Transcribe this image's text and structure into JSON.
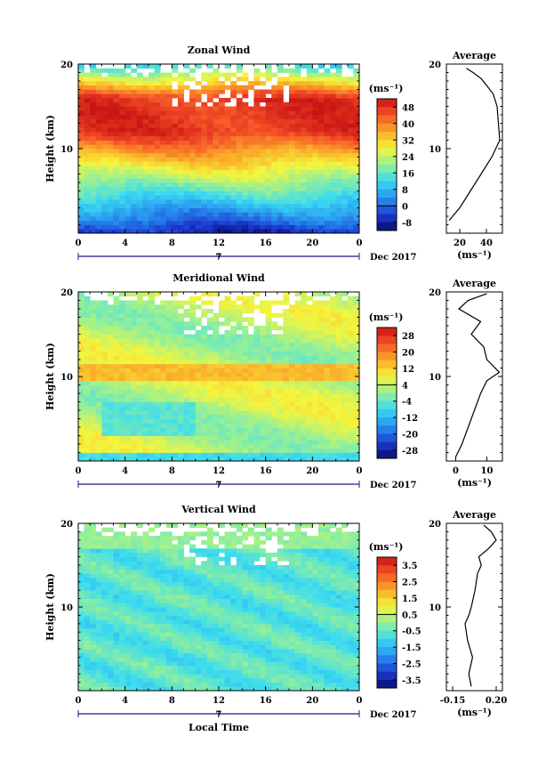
{
  "chart_data": [
    {
      "type": "heatmap",
      "title": "Zonal Wind",
      "ylabel": "Height (km)",
      "xlabel": "",
      "x_range": [
        0,
        24
      ],
      "y_range": [
        0,
        20
      ],
      "x_ticks": [
        "0",
        "4",
        "8",
        "12",
        "16",
        "20",
        "0"
      ],
      "y_ticks": [
        "20",
        "10"
      ],
      "date_marker": "7",
      "date_label": "Dec 2017",
      "colorbar": {
        "unit": "(ms⁻¹)",
        "ticks": [
          "48",
          "40",
          "32",
          "24",
          "16",
          "8",
          "0",
          "-8"
        ],
        "range": [
          -12,
          52
        ]
      },
      "profile": {
        "title": "Average",
        "x_ticks": [
          "20",
          "40"
        ],
        "x_range": [
          10,
          52
        ],
        "xlabel": "(ms⁻¹)",
        "y_ticks": [
          "20",
          "10"
        ],
        "heights": [
          1.5,
          3,
          5,
          7,
          9,
          11,
          13,
          15,
          16.5,
          17.5,
          18.3,
          19,
          19.5
        ],
        "values": [
          12,
          20,
          28,
          36,
          44,
          50,
          49,
          48,
          45,
          40,
          36,
          30,
          25
        ]
      }
    },
    {
      "type": "heatmap",
      "title": "Meridional Wind",
      "ylabel": "Height (km)",
      "xlabel": "",
      "x_range": [
        0,
        24
      ],
      "y_range": [
        0,
        20
      ],
      "x_ticks": [
        "0",
        "4",
        "8",
        "12",
        "16",
        "20",
        "0"
      ],
      "y_ticks": [
        "20",
        "10"
      ],
      "date_marker": "7",
      "date_label": "Dec 2017",
      "colorbar": {
        "unit": "(ms⁻¹)",
        "ticks": [
          "28",
          "20",
          "12",
          "4",
          "-4",
          "-12",
          "-20",
          "-28"
        ],
        "range": [
          -32,
          32
        ]
      },
      "profile": {
        "title": "Average",
        "x_ticks": [
          "0",
          "10"
        ],
        "x_range": [
          -3,
          15
        ],
        "xlabel": "(ms⁻¹)",
        "y_ticks": [
          "20",
          "10"
        ],
        "heights": [
          0.5,
          2,
          4,
          6,
          8,
          9.5,
          10.5,
          12,
          13.5,
          15,
          16.5,
          18,
          19,
          19.8
        ],
        "values": [
          0,
          2,
          4,
          6,
          8,
          10,
          14,
          10,
          9,
          5,
          8,
          1,
          4,
          10
        ]
      }
    },
    {
      "type": "heatmap",
      "title": "Vertical Wind",
      "ylabel": "Height (km)",
      "xlabel": "Local Time",
      "x_range": [
        0,
        24
      ],
      "y_range": [
        0,
        20
      ],
      "x_ticks": [
        "0",
        "4",
        "8",
        "12",
        "16",
        "20",
        "0"
      ],
      "y_ticks": [
        "20",
        "10"
      ],
      "date_marker": "7",
      "date_label": "Dec 2017",
      "colorbar": {
        "unit": "(ms⁻¹)",
        "ticks": [
          "3.5",
          "2.5",
          "1.5",
          "0.5",
          "-0.5",
          "-1.5",
          "-2.5",
          "-3.5"
        ],
        "range": [
          -4,
          4
        ]
      },
      "profile": {
        "title": "Average",
        "x_ticks": [
          "-0.15",
          "0.20"
        ],
        "x_range": [
          -0.2,
          0.25
        ],
        "xlabel": "(ms⁻¹)",
        "y_ticks": [
          "20",
          "10"
        ],
        "heights": [
          0.5,
          2,
          4,
          6,
          8,
          9,
          10,
          12,
          14,
          15,
          16,
          17,
          18,
          19,
          19.8
        ],
        "values": [
          0.0,
          -0.02,
          0.01,
          -0.03,
          -0.05,
          -0.02,
          0.0,
          0.03,
          0.05,
          0.08,
          0.06,
          0.14,
          0.2,
          0.16,
          0.1
        ]
      }
    }
  ]
}
